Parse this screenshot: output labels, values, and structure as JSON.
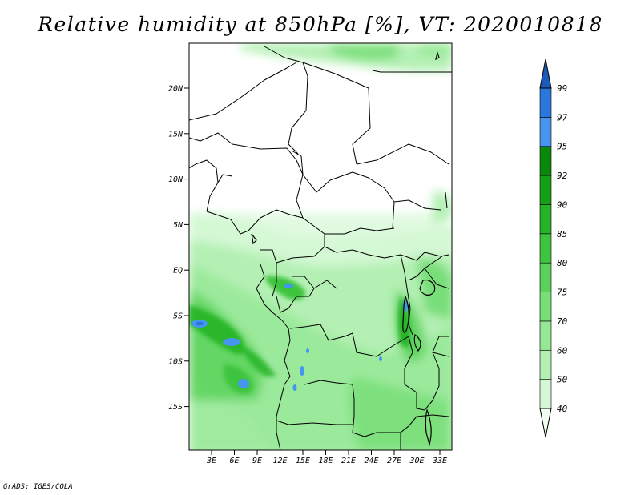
{
  "title": "Relative humidity at 850hPa [%], VT: 2020010818",
  "footer": "GrADS: IGES/COLA",
  "map": {
    "lat_ticks": [
      "20N",
      "15N",
      "10N",
      "5N",
      "EQ",
      "5S",
      "10S",
      "15S"
    ],
    "lon_ticks": [
      "3E",
      "6E",
      "9E",
      "12E",
      "15E",
      "18E",
      "21E",
      "24E",
      "27E",
      "30E",
      "33E"
    ]
  },
  "colorbar": {
    "levels": [
      "40",
      "50",
      "60",
      "70",
      "75",
      "80",
      "85",
      "90",
      "92",
      "95",
      "97",
      "99"
    ],
    "colors": [
      "#f0fff0",
      "#d4f8d4",
      "#b4f0b4",
      "#96e896",
      "#78de78",
      "#5ad25a",
      "#3ec43e",
      "#26b426",
      "#14a014",
      "#0a880a",
      "#4696f0",
      "#2a78dc",
      "#1a5ab8"
    ]
  }
}
